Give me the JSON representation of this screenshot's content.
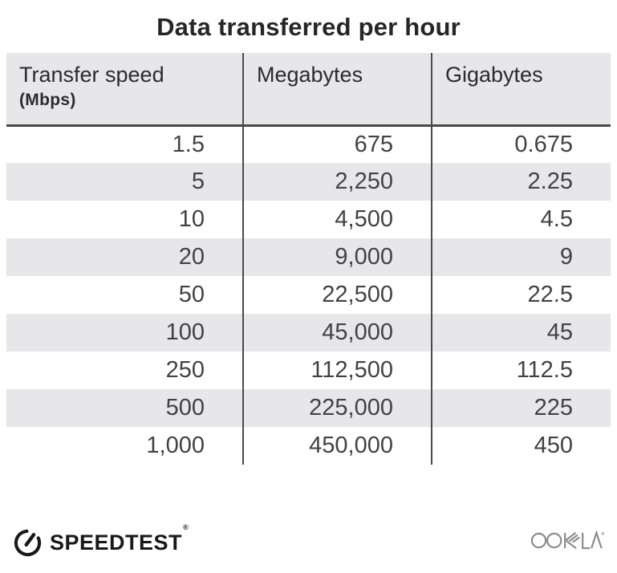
{
  "title": "Data transferred per hour",
  "table": {
    "headers": {
      "col1_line1": "Transfer speed",
      "col1_line2": "(Mbps)",
      "col2": "Megabytes",
      "col3": "Gigabytes"
    },
    "rows": [
      [
        "1.5",
        "675",
        "0.675"
      ],
      [
        "5",
        "2,250",
        "2.25"
      ],
      [
        "10",
        "4,500",
        "4.5"
      ],
      [
        "20",
        "9,000",
        "9"
      ],
      [
        "50",
        "22,500",
        "22.5"
      ],
      [
        "100",
        "45,000",
        "45"
      ],
      [
        "250",
        "112,500",
        "112.5"
      ],
      [
        "500",
        "225,000",
        "225"
      ],
      [
        "1,000",
        "450,000",
        "450"
      ]
    ]
  },
  "footer": {
    "speedtest_label": "SPEEDTEST",
    "speedtest_trademark": "®",
    "speedtest_icon": "speedometer-gauge-icon",
    "ookla_label": "OOKLA",
    "ookla_icon": "ookla-wordmark"
  },
  "colors": {
    "stripe": "#e7e7ea",
    "header_bg": "#e7e7ea",
    "divider": "#4a4a4a",
    "title_text": "#262626",
    "cell_text": "#424246",
    "header_text": "#2b2b2e",
    "brand_dark": "#191919",
    "ookla_gray": "#8c8c8c"
  },
  "chart_data": {
    "type": "table",
    "title": "Data transferred per hour",
    "columns": [
      "Transfer speed (Mbps)",
      "Megabytes",
      "Gigabytes"
    ],
    "rows": [
      [
        1.5,
        675,
        0.675
      ],
      [
        5,
        2250,
        2.25
      ],
      [
        10,
        4500,
        4.5
      ],
      [
        20,
        9000,
        9
      ],
      [
        50,
        22500,
        22.5
      ],
      [
        100,
        45000,
        45
      ],
      [
        250,
        112500,
        112.5
      ],
      [
        500,
        225000,
        225
      ],
      [
        1000,
        450000,
        450
      ]
    ],
    "layout": {
      "row_striping": true,
      "column_dividers": true,
      "value_alignment": "right"
    }
  }
}
